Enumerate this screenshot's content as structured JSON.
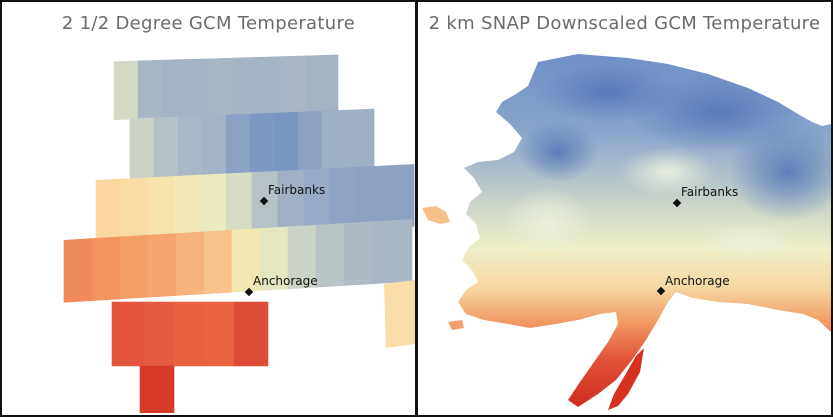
{
  "panels": [
    {
      "title": "2 1/2  Degree GCM Temperature",
      "cities": [
        {
          "name": "Fairbanks"
        },
        {
          "name": "Anchorage"
        }
      ]
    },
    {
      "title": "2 km SNAP Downscaled GCM Temperature",
      "cities": [
        {
          "name": "Fairbanks"
        },
        {
          "name": "Anchorage"
        }
      ]
    }
  ],
  "colors": {
    "cold": "#5b7fbf",
    "cool": "#9fb2c6",
    "neutral": "#f3f0c4",
    "warm": "#f5a36f",
    "hot": "#d7301f"
  }
}
